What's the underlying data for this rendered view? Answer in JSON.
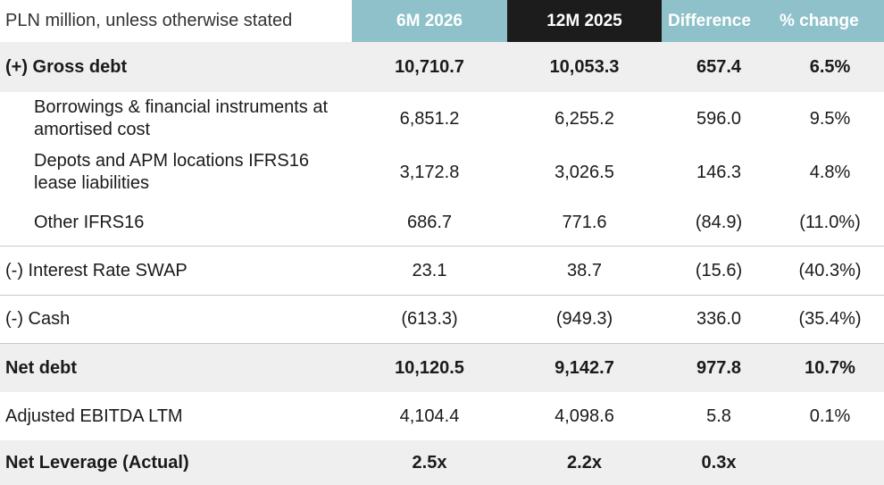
{
  "header": {
    "unit_note": "PLN million, unless otherwise stated",
    "col1": "6M 2026",
    "col2": "12M 2025",
    "col3": "Difference",
    "col4": "% change"
  },
  "rows": [
    {
      "label": "(+) Gross debt",
      "v1": "10,710.7",
      "v2": "10,053.3",
      "v3": "657.4",
      "v4": "6.5%"
    },
    {
      "label": "Borrowings & financial instruments at amortised cost",
      "v1": "6,851.2",
      "v2": "6,255.2",
      "v3": "596.0",
      "v4": "9.5%"
    },
    {
      "label": "Depots and APM locations IFRS16 lease liabilities",
      "v1": "3,172.8",
      "v2": "3,026.5",
      "v3": "146.3",
      "v4": "4.8%"
    },
    {
      "label": "Other IFRS16",
      "v1": "686.7",
      "v2": "771.6",
      "v3": "(84.9)",
      "v4": "(11.0%)"
    },
    {
      "label": "(-) Interest Rate SWAP",
      "v1": "23.1",
      "v2": "38.7",
      "v3": "(15.6)",
      "v4": "(40.3%)"
    },
    {
      "label": "(-) Cash",
      "v1": "(613.3)",
      "v2": "(949.3)",
      "v3": "336.0",
      "v4": "(35.4%)"
    },
    {
      "label": "Net debt",
      "v1": "10,120.5",
      "v2": "9,142.7",
      "v3": "977.8",
      "v4": "10.7%"
    },
    {
      "label": "Adjusted EBITDA LTM",
      "v1": "4,104.4",
      "v2": "4,098.6",
      "v3": "5.8",
      "v4": "0.1%"
    },
    {
      "label": "Net Leverage (Actual)",
      "v1": "2.5x",
      "v2": "2.2x",
      "v3": "0.3x",
      "v4": ""
    }
  ]
}
